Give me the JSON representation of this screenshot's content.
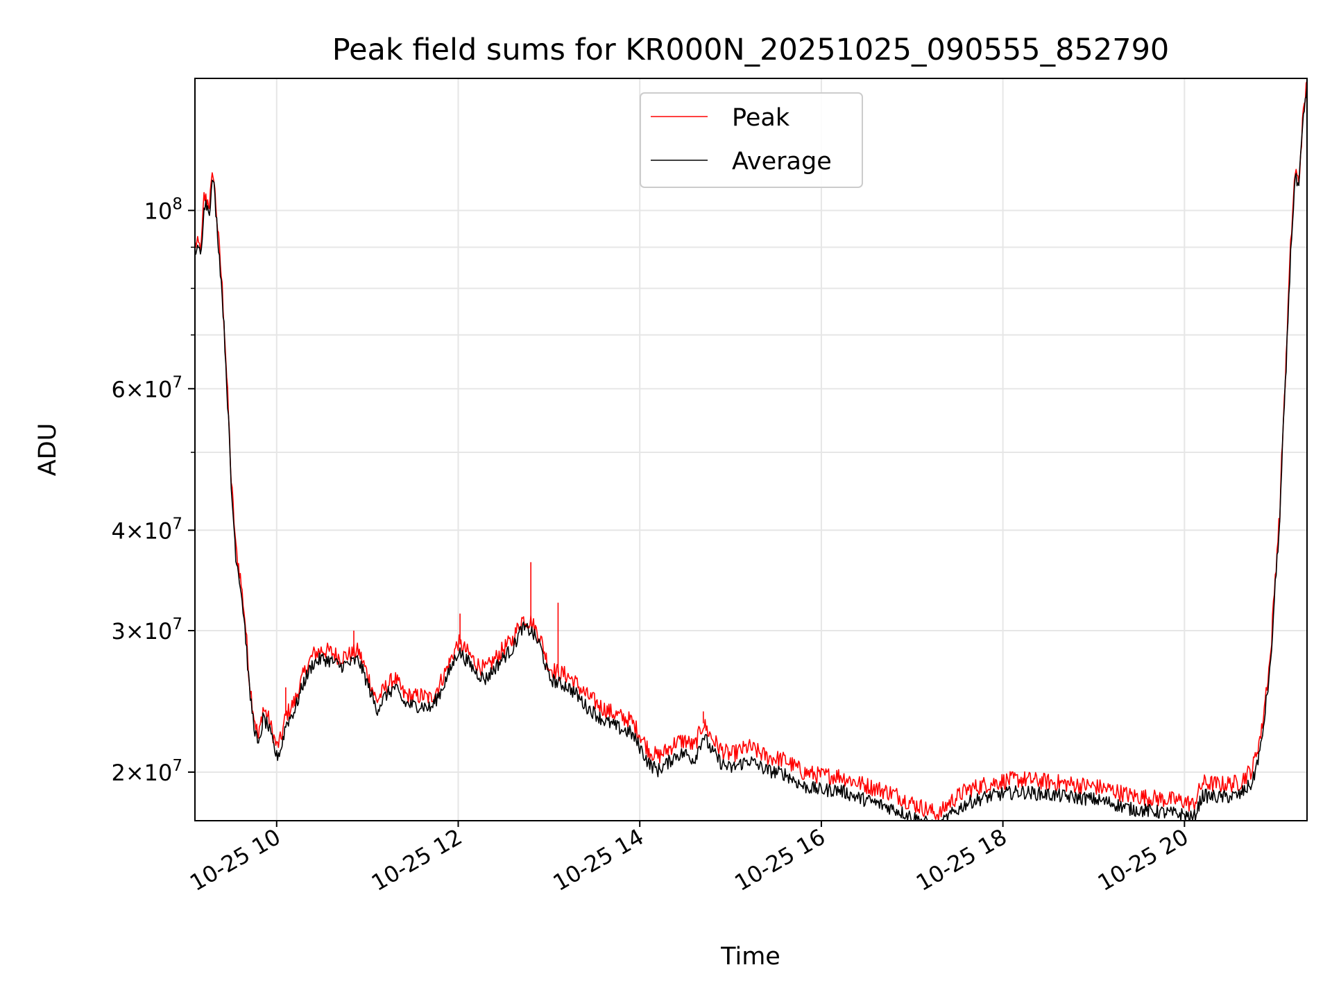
{
  "chart_data": {
    "type": "line",
    "title": "Peak field sums for KR000N_20251025_090555_852790",
    "xlabel": "Time",
    "ylabel": "ADU",
    "yscale": "log",
    "xlim_hours": [
      9.1,
      21.35
    ],
    "ylim": [
      17400000,
      146000000
    ],
    "grid": true,
    "legend_position": "top-center",
    "x_ticks": [
      {
        "value": 10,
        "label": "10-25 10"
      },
      {
        "value": 12,
        "label": "10-25 12"
      },
      {
        "value": 14,
        "label": "10-25 14"
      },
      {
        "value": 16,
        "label": "10-25 16"
      },
      {
        "value": 18,
        "label": "10-25 18"
      },
      {
        "value": 20,
        "label": "10-25 20"
      }
    ],
    "y_major_ticks": [
      {
        "value": 20000000,
        "base": "2",
        "exp": "7"
      },
      {
        "value": 30000000,
        "base": "3",
        "exp": "7"
      },
      {
        "value": 40000000,
        "base": "4",
        "exp": "7"
      },
      {
        "value": 60000000,
        "base": "6",
        "exp": "7"
      },
      {
        "value": 100000000,
        "base": "",
        "exp": "8"
      }
    ],
    "y_minor_ticks": [
      50000000,
      70000000,
      80000000,
      90000000
    ],
    "series": [
      {
        "name": "Peak",
        "color": "#ff0000",
        "points": [
          [
            9.1,
            91000000
          ],
          [
            9.17,
            90000000
          ],
          [
            9.2,
            104000000
          ],
          [
            9.26,
            102000000
          ],
          [
            9.3,
            112000000
          ],
          [
            9.35,
            95000000
          ],
          [
            9.4,
            80000000
          ],
          [
            9.45,
            62000000
          ],
          [
            9.5,
            46000000
          ],
          [
            9.55,
            38000000
          ],
          [
            9.6,
            35000000
          ],
          [
            9.65,
            31000000
          ],
          [
            9.7,
            26000000
          ],
          [
            9.75,
            23500000
          ],
          [
            9.8,
            22000000
          ],
          [
            9.85,
            24000000
          ],
          [
            9.9,
            23500000
          ],
          [
            9.95,
            22500000
          ],
          [
            10.0,
            21500000
          ],
          [
            10.05,
            22000000
          ],
          [
            10.1,
            23500000
          ],
          [
            10.2,
            24500000
          ],
          [
            10.3,
            26500000
          ],
          [
            10.4,
            28000000
          ],
          [
            10.5,
            28400000
          ],
          [
            10.6,
            28200000
          ],
          [
            10.7,
            27800000
          ],
          [
            10.8,
            28000000
          ],
          [
            10.9,
            28300000
          ],
          [
            11.0,
            26500000
          ],
          [
            11.1,
            24500000
          ],
          [
            11.2,
            25500000
          ],
          [
            11.3,
            26200000
          ],
          [
            11.4,
            25000000
          ],
          [
            11.5,
            24800000
          ],
          [
            11.6,
            24900000
          ],
          [
            11.7,
            24700000
          ],
          [
            11.8,
            25800000
          ],
          [
            11.9,
            27300000
          ],
          [
            12.0,
            29000000
          ],
          [
            12.1,
            28200000
          ],
          [
            12.2,
            27300000
          ],
          [
            12.3,
            26800000
          ],
          [
            12.4,
            27600000
          ],
          [
            12.5,
            28500000
          ],
          [
            12.6,
            29200000
          ],
          [
            12.7,
            31000000
          ],
          [
            12.8,
            30800000
          ],
          [
            12.9,
            29500000
          ],
          [
            13.0,
            27000000
          ],
          [
            13.1,
            26600000
          ],
          [
            13.2,
            26400000
          ],
          [
            13.3,
            25800000
          ],
          [
            13.4,
            25000000
          ],
          [
            13.5,
            24500000
          ],
          [
            13.6,
            24000000
          ],
          [
            13.7,
            23700000
          ],
          [
            13.8,
            23400000
          ],
          [
            13.9,
            23200000
          ],
          [
            14.0,
            22300000
          ],
          [
            14.1,
            21300000
          ],
          [
            14.2,
            20900000
          ],
          [
            14.3,
            21300000
          ],
          [
            14.4,
            21800000
          ],
          [
            14.5,
            21900000
          ],
          [
            14.6,
            21500000
          ],
          [
            14.7,
            23000000
          ],
          [
            14.8,
            22000000
          ],
          [
            14.9,
            21300000
          ],
          [
            15.0,
            21000000
          ],
          [
            15.2,
            21500000
          ],
          [
            15.4,
            20900000
          ],
          [
            15.6,
            20700000
          ],
          [
            15.8,
            20000000
          ],
          [
            16.0,
            19800000
          ],
          [
            16.2,
            19800000
          ],
          [
            16.4,
            19400000
          ],
          [
            16.6,
            19100000
          ],
          [
            16.8,
            18800000
          ],
          [
            17.0,
            18300000
          ],
          [
            17.2,
            17900000
          ],
          [
            17.3,
            17700000
          ],
          [
            17.4,
            18300000
          ],
          [
            17.6,
            19000000
          ],
          [
            17.8,
            19300000
          ],
          [
            18.0,
            19500000
          ],
          [
            18.2,
            19600000
          ],
          [
            18.4,
            19500000
          ],
          [
            18.6,
            19400000
          ],
          [
            18.8,
            19300000
          ],
          [
            19.0,
            19200000
          ],
          [
            19.2,
            19000000
          ],
          [
            19.4,
            18700000
          ],
          [
            19.6,
            18600000
          ],
          [
            19.8,
            18500000
          ],
          [
            20.0,
            18400000
          ],
          [
            20.1,
            18200000
          ],
          [
            20.2,
            19400000
          ],
          [
            20.4,
            19300000
          ],
          [
            20.6,
            19400000
          ],
          [
            20.75,
            20200000
          ],
          [
            20.85,
            22500000
          ],
          [
            20.95,
            28000000
          ],
          [
            21.05,
            42000000
          ],
          [
            21.12,
            65000000
          ],
          [
            21.18,
            95000000
          ],
          [
            21.22,
            112000000
          ],
          [
            21.26,
            108000000
          ],
          [
            21.3,
            128000000
          ],
          [
            21.35,
            145000000
          ]
        ]
      },
      {
        "name": "Average",
        "color": "#000000",
        "points": [
          [
            9.1,
            89500000
          ],
          [
            9.17,
            88500000
          ],
          [
            9.2,
            102500000
          ],
          [
            9.26,
            100500000
          ],
          [
            9.3,
            110000000
          ],
          [
            9.35,
            93500000
          ],
          [
            9.4,
            78500000
          ],
          [
            9.45,
            61000000
          ],
          [
            9.5,
            45000000
          ],
          [
            9.55,
            37300000
          ],
          [
            9.6,
            34300000
          ],
          [
            9.65,
            30300000
          ],
          [
            9.7,
            25300000
          ],
          [
            9.75,
            22900000
          ],
          [
            9.8,
            21400000
          ],
          [
            9.85,
            23300000
          ],
          [
            9.9,
            22900000
          ],
          [
            9.95,
            21900000
          ],
          [
            10.0,
            20900000
          ],
          [
            10.05,
            21400000
          ],
          [
            10.1,
            22900000
          ],
          [
            10.2,
            23900000
          ],
          [
            10.3,
            25900000
          ],
          [
            10.4,
            27300000
          ],
          [
            10.5,
            27700000
          ],
          [
            10.6,
            27500000
          ],
          [
            10.7,
            27100000
          ],
          [
            10.8,
            27300000
          ],
          [
            10.9,
            27600000
          ],
          [
            11.0,
            25800000
          ],
          [
            11.1,
            23900000
          ],
          [
            11.2,
            24900000
          ],
          [
            11.3,
            25500000
          ],
          [
            11.4,
            24400000
          ],
          [
            11.5,
            24200000
          ],
          [
            11.6,
            24200000
          ],
          [
            11.7,
            24000000
          ],
          [
            11.8,
            25100000
          ],
          [
            11.9,
            26600000
          ],
          [
            12.0,
            28300000
          ],
          [
            12.1,
            27500000
          ],
          [
            12.2,
            26600000
          ],
          [
            12.3,
            26100000
          ],
          [
            12.4,
            26900000
          ],
          [
            12.5,
            27800000
          ],
          [
            12.6,
            28500000
          ],
          [
            12.7,
            30200000
          ],
          [
            12.8,
            30000000
          ],
          [
            12.9,
            28800000
          ],
          [
            13.0,
            26200000
          ],
          [
            13.1,
            25800000
          ],
          [
            13.2,
            25600000
          ],
          [
            13.3,
            25000000
          ],
          [
            13.4,
            24200000
          ],
          [
            13.5,
            23700000
          ],
          [
            13.6,
            23200000
          ],
          [
            13.7,
            22900000
          ],
          [
            13.8,
            22600000
          ],
          [
            13.9,
            22400000
          ],
          [
            14.0,
            21500000
          ],
          [
            14.1,
            20500000
          ],
          [
            14.2,
            20100000
          ],
          [
            14.3,
            20500000
          ],
          [
            14.4,
            21000000
          ],
          [
            14.5,
            21100000
          ],
          [
            14.6,
            20700000
          ],
          [
            14.7,
            22200000
          ],
          [
            14.8,
            21200000
          ],
          [
            14.9,
            20500000
          ],
          [
            15.0,
            20200000
          ],
          [
            15.2,
            20700000
          ],
          [
            15.4,
            20100000
          ],
          [
            15.6,
            19900000
          ],
          [
            15.8,
            19200000
          ],
          [
            16.0,
            19000000
          ],
          [
            16.2,
            19000000
          ],
          [
            16.4,
            18600000
          ],
          [
            16.6,
            18300000
          ],
          [
            16.8,
            18000000
          ],
          [
            17.0,
            17600000
          ],
          [
            17.2,
            17200000
          ],
          [
            17.3,
            17100000
          ],
          [
            17.4,
            17600000
          ],
          [
            17.6,
            18300000
          ],
          [
            17.8,
            18600000
          ],
          [
            18.0,
            18800000
          ],
          [
            18.2,
            18900000
          ],
          [
            18.4,
            18800000
          ],
          [
            18.6,
            18700000
          ],
          [
            18.8,
            18600000
          ],
          [
            19.0,
            18500000
          ],
          [
            19.2,
            18300000
          ],
          [
            19.4,
            18000000
          ],
          [
            19.6,
            17900000
          ],
          [
            19.8,
            17800000
          ],
          [
            20.0,
            17700000
          ],
          [
            20.1,
            17500000
          ],
          [
            20.2,
            18700000
          ],
          [
            20.4,
            18600000
          ],
          [
            20.6,
            18700000
          ],
          [
            20.75,
            19400000
          ],
          [
            20.85,
            21700000
          ],
          [
            20.95,
            27200000
          ],
          [
            21.05,
            41000000
          ],
          [
            21.12,
            63500000
          ],
          [
            21.18,
            93000000
          ],
          [
            21.22,
            110000000
          ],
          [
            21.26,
            106000000
          ],
          [
            21.3,
            126000000
          ],
          [
            21.35,
            143000000
          ]
        ]
      }
    ],
    "annotations": [
      {
        "series": "Peak",
        "type": "spike",
        "x": 12.02,
        "y": 31500000
      },
      {
        "series": "Peak",
        "type": "spike",
        "x": 12.8,
        "y": 36500000
      },
      {
        "series": "Peak",
        "type": "spike",
        "x": 13.1,
        "y": 32500000
      },
      {
        "series": "Peak",
        "type": "spike",
        "x": 10.85,
        "y": 30000000
      },
      {
        "series": "Peak",
        "type": "spike",
        "x": 10.1,
        "y": 25500000
      },
      {
        "series": "Peak",
        "type": "spike",
        "x": 14.7,
        "y": 23800000
      }
    ]
  }
}
